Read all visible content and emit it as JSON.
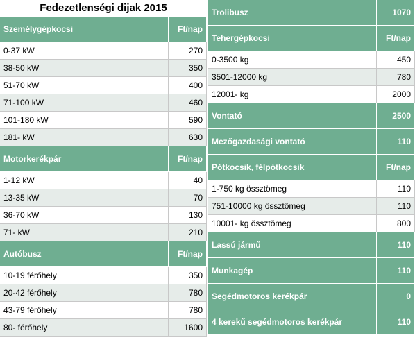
{
  "title": "Fedezetlenségi dijak 2015",
  "colors": {
    "header_green": "#6fae91",
    "row_alt": "#e6ece9"
  },
  "left": {
    "szemely": {
      "header": "Személygépkocsi",
      "unit": "Ft/nap",
      "rows": [
        {
          "label": "0-37 kW",
          "value": "270"
        },
        {
          "label": "38-50 kW",
          "value": "350"
        },
        {
          "label": "51-70 kW",
          "value": "400"
        },
        {
          "label": "71-100 kW",
          "value": "460"
        },
        {
          "label": "101-180 kW",
          "value": "590"
        },
        {
          "label": "181- kW",
          "value": "630"
        }
      ]
    },
    "motor": {
      "header": "Motorkerékpár",
      "unit": "Ft/nap",
      "rows": [
        {
          "label": "1-12 kW",
          "value": "40"
        },
        {
          "label": "13-35 kW",
          "value": "70"
        },
        {
          "label": "36-70 kW",
          "value": "130"
        },
        {
          "label": "71- kW",
          "value": "210"
        }
      ]
    },
    "autobusz": {
      "header": "Autóbusz",
      "unit": "Ft/nap",
      "rows": [
        {
          "label": "10-19 férőhely",
          "value": "350"
        },
        {
          "label": "20-42 férőhely",
          "value": "780"
        },
        {
          "label": "43-79 férőhely",
          "value": "780"
        },
        {
          "label": "80- férőhely",
          "value": "1600"
        }
      ]
    }
  },
  "right": {
    "trolibusz": {
      "label": "Trolibusz",
      "value": "1070"
    },
    "teher": {
      "header": "Tehergépkocsi",
      "unit": "Ft/nap",
      "rows": [
        {
          "label": "0-3500 kg",
          "value": "450"
        },
        {
          "label": "3501-12000 kg",
          "value": "780"
        },
        {
          "label": "12001- kg",
          "value": "2000"
        }
      ]
    },
    "vontato": {
      "label": "Vontató",
      "value": "2500"
    },
    "mezo": {
      "label": "Mezőgazdasági vontató",
      "value": "110"
    },
    "potkocsi": {
      "header": "Pótkocsik, félpótkocsik",
      "unit": "Ft/nap",
      "rows": [
        {
          "label": "1-750 kg össztömeg",
          "value": "110"
        },
        {
          "label": "751-10000 kg össztömeg",
          "value": "110"
        },
        {
          "label": "10001- kg össztömeg",
          "value": "800"
        }
      ]
    },
    "lassu": {
      "label": "Lassú jármű",
      "value": "110"
    },
    "munkagep": {
      "label": "Munkagép",
      "value": "110"
    },
    "segedmotoros": {
      "label": "Segédmotoros kerékpár",
      "value": "0"
    },
    "negykereku": {
      "label": "4 kerekű segédmotoros kerékpár",
      "value": "110"
    }
  }
}
